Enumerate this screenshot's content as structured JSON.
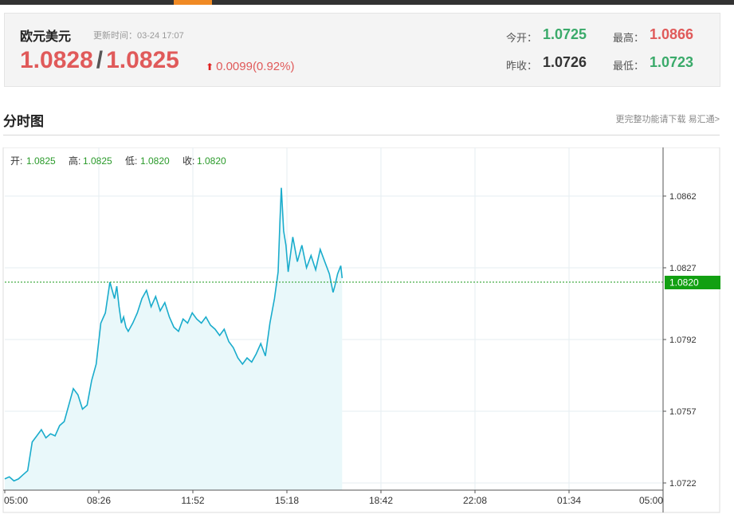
{
  "quote": {
    "pair_name": "欧元美元",
    "update_time": "更新时间：03-24 17:07",
    "bid": "1.0828",
    "separator": "/",
    "ask": "1.0825",
    "change": "0.0099(0.92%)",
    "open_label": "今开：",
    "open_value": "1.0725",
    "prev_close_label": "昨收：",
    "prev_close_value": "1.0726",
    "high_label": "最高：",
    "high_value": "1.0866",
    "low_label": "最低：",
    "low_value": "1.0723",
    "colors": {
      "up": "#e05a5a",
      "green": "#3aaa6a",
      "neutral": "#333333"
    }
  },
  "section": {
    "title": "分时图",
    "link": "更完整功能请下载 易汇通>"
  },
  "chart_data": {
    "type": "area",
    "title": "",
    "xlabel": "",
    "ylabel": "",
    "ohlc": {
      "open_label": "开:",
      "open": "1.0825",
      "high_label": "高:",
      "high": "1.0825",
      "low_label": "低:",
      "low": "1.0820",
      "close_label": "收:",
      "close": "1.0820"
    },
    "x_ticks": [
      "05:00",
      "08:26",
      "11:52",
      "15:18",
      "18:42",
      "22:08",
      "01:34",
      "05:00"
    ],
    "y_ticks": [
      "1.0862",
      "1.0827",
      "1.0792",
      "1.0757",
      "1.0722"
    ],
    "ylim": [
      1.0722,
      1.0862
    ],
    "current_price": "1.0820",
    "x_unit": "minutes since 05:00",
    "x_range": [
      0,
      1440
    ],
    "grid": true,
    "colors": {
      "line": "#1aaccc",
      "fill": "#e9f8fa",
      "current": "#1a9a1a",
      "current_bg": "#12a012"
    },
    "series": [
      {
        "x": [
          0,
          10,
          20,
          30,
          40,
          50,
          60,
          70,
          80,
          90,
          100,
          110,
          120,
          130,
          140,
          150,
          160,
          170,
          180,
          190,
          200,
          210,
          220,
          230,
          240,
          245,
          250,
          255,
          260,
          265,
          270,
          280,
          290,
          300,
          310,
          320,
          330,
          340,
          350,
          360,
          370,
          380,
          390,
          400,
          410,
          420,
          430,
          440,
          450,
          460,
          470,
          480,
          490,
          500,
          510,
          520,
          530,
          540,
          550,
          560,
          570,
          580,
          590,
          598,
          602,
          605,
          610,
          615,
          620,
          630,
          640,
          650,
          660,
          670,
          680,
          690,
          700,
          710,
          718,
          722,
          728,
          735,
          738
        ],
        "values": [
          1.0724,
          1.0725,
          1.0723,
          1.0724,
          1.0726,
          1.0728,
          1.0742,
          1.0745,
          1.0748,
          1.0744,
          1.0746,
          1.0745,
          1.075,
          1.0752,
          1.076,
          1.0768,
          1.0765,
          1.0758,
          1.076,
          1.0772,
          1.078,
          1.08,
          1.0805,
          1.082,
          1.0812,
          1.0818,
          1.0808,
          1.08,
          1.0803,
          1.0798,
          1.0796,
          1.08,
          1.0805,
          1.0812,
          1.0816,
          1.0808,
          1.0813,
          1.0806,
          1.081,
          1.0803,
          1.0798,
          1.0796,
          1.0802,
          1.08,
          1.0805,
          1.0802,
          1.08,
          1.0803,
          1.0799,
          1.0797,
          1.0794,
          1.0797,
          1.0791,
          1.0788,
          1.0783,
          1.078,
          1.0783,
          1.0781,
          1.0785,
          1.079,
          1.0784,
          1.08,
          1.0812,
          1.0825,
          1.085,
          1.0866,
          1.0845,
          1.0838,
          1.0825,
          1.0842,
          1.083,
          1.0838,
          1.0827,
          1.0833,
          1.0826,
          1.0836,
          1.083,
          1.0824,
          1.0815,
          1.0818,
          1.0824,
          1.0828,
          1.0822
        ]
      }
    ]
  }
}
